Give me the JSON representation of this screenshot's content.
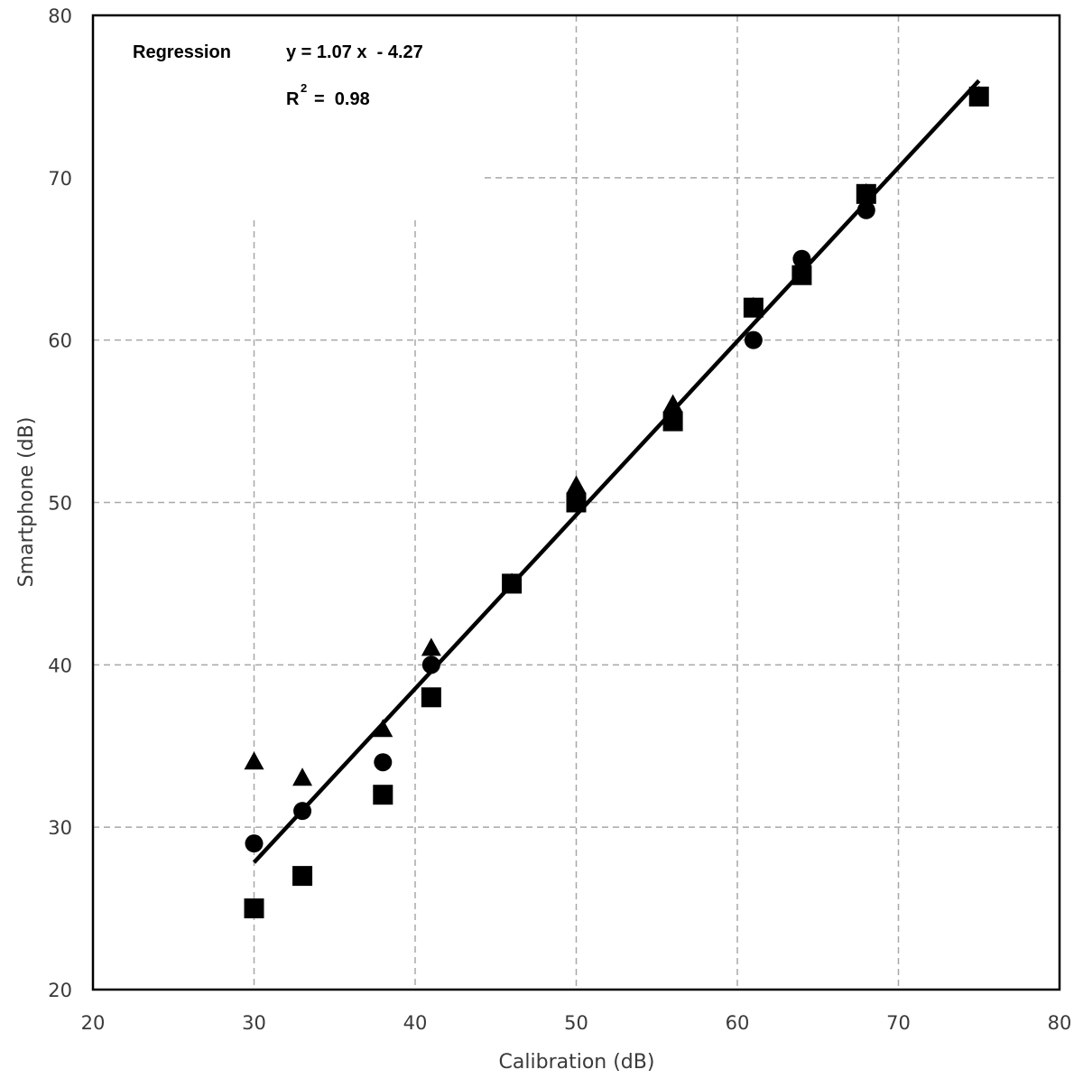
{
  "chart_data": {
    "type": "scatter",
    "title": "",
    "xlabel": "Calibration (dB)",
    "ylabel": "Smartphone (dB)",
    "xlim": [
      20,
      80
    ],
    "ylim": [
      20,
      80
    ],
    "xticks": [
      20,
      30,
      40,
      50,
      60,
      70,
      80
    ],
    "yticks": [
      20,
      30,
      40,
      50,
      60,
      70,
      80
    ],
    "grid": true,
    "legend": null,
    "series": [
      {
        "name": "triangle",
        "marker": "triangle",
        "color": "#000000",
        "points": [
          [
            30,
            34
          ],
          [
            33,
            33
          ],
          [
            38,
            36
          ],
          [
            41,
            41
          ],
          [
            46,
            45
          ],
          [
            50,
            51
          ],
          [
            56,
            56
          ],
          [
            61,
            62
          ],
          [
            64,
            64
          ],
          [
            68,
            69
          ],
          [
            75,
            75
          ]
        ]
      },
      {
        "name": "circle",
        "marker": "circle",
        "color": "#000000",
        "points": [
          [
            30,
            29
          ],
          [
            33,
            31
          ],
          [
            38,
            34
          ],
          [
            41,
            40
          ],
          [
            46,
            45
          ],
          [
            50,
            50
          ],
          [
            56,
            55
          ],
          [
            61,
            60
          ],
          [
            64,
            65
          ],
          [
            68,
            68
          ],
          [
            75,
            75
          ]
        ]
      },
      {
        "name": "square",
        "marker": "square",
        "color": "#000000",
        "points": [
          [
            30,
            25
          ],
          [
            33,
            27
          ],
          [
            38,
            32
          ],
          [
            41,
            38
          ],
          [
            46,
            45
          ],
          [
            50,
            50
          ],
          [
            56,
            55
          ],
          [
            61,
            62
          ],
          [
            64,
            64
          ],
          [
            68,
            69
          ],
          [
            75,
            75
          ]
        ]
      }
    ],
    "regression": {
      "slope": 1.07,
      "intercept": -4.27,
      "r2": 0.98,
      "x_range": [
        30,
        75
      ]
    },
    "annotations": {
      "regression_label": "Regression",
      "equation": "y = 1.07 x  - 4.27",
      "r2_prefix": "R",
      "r2_superscript": "2",
      "r2_value": "=  0.98"
    }
  }
}
